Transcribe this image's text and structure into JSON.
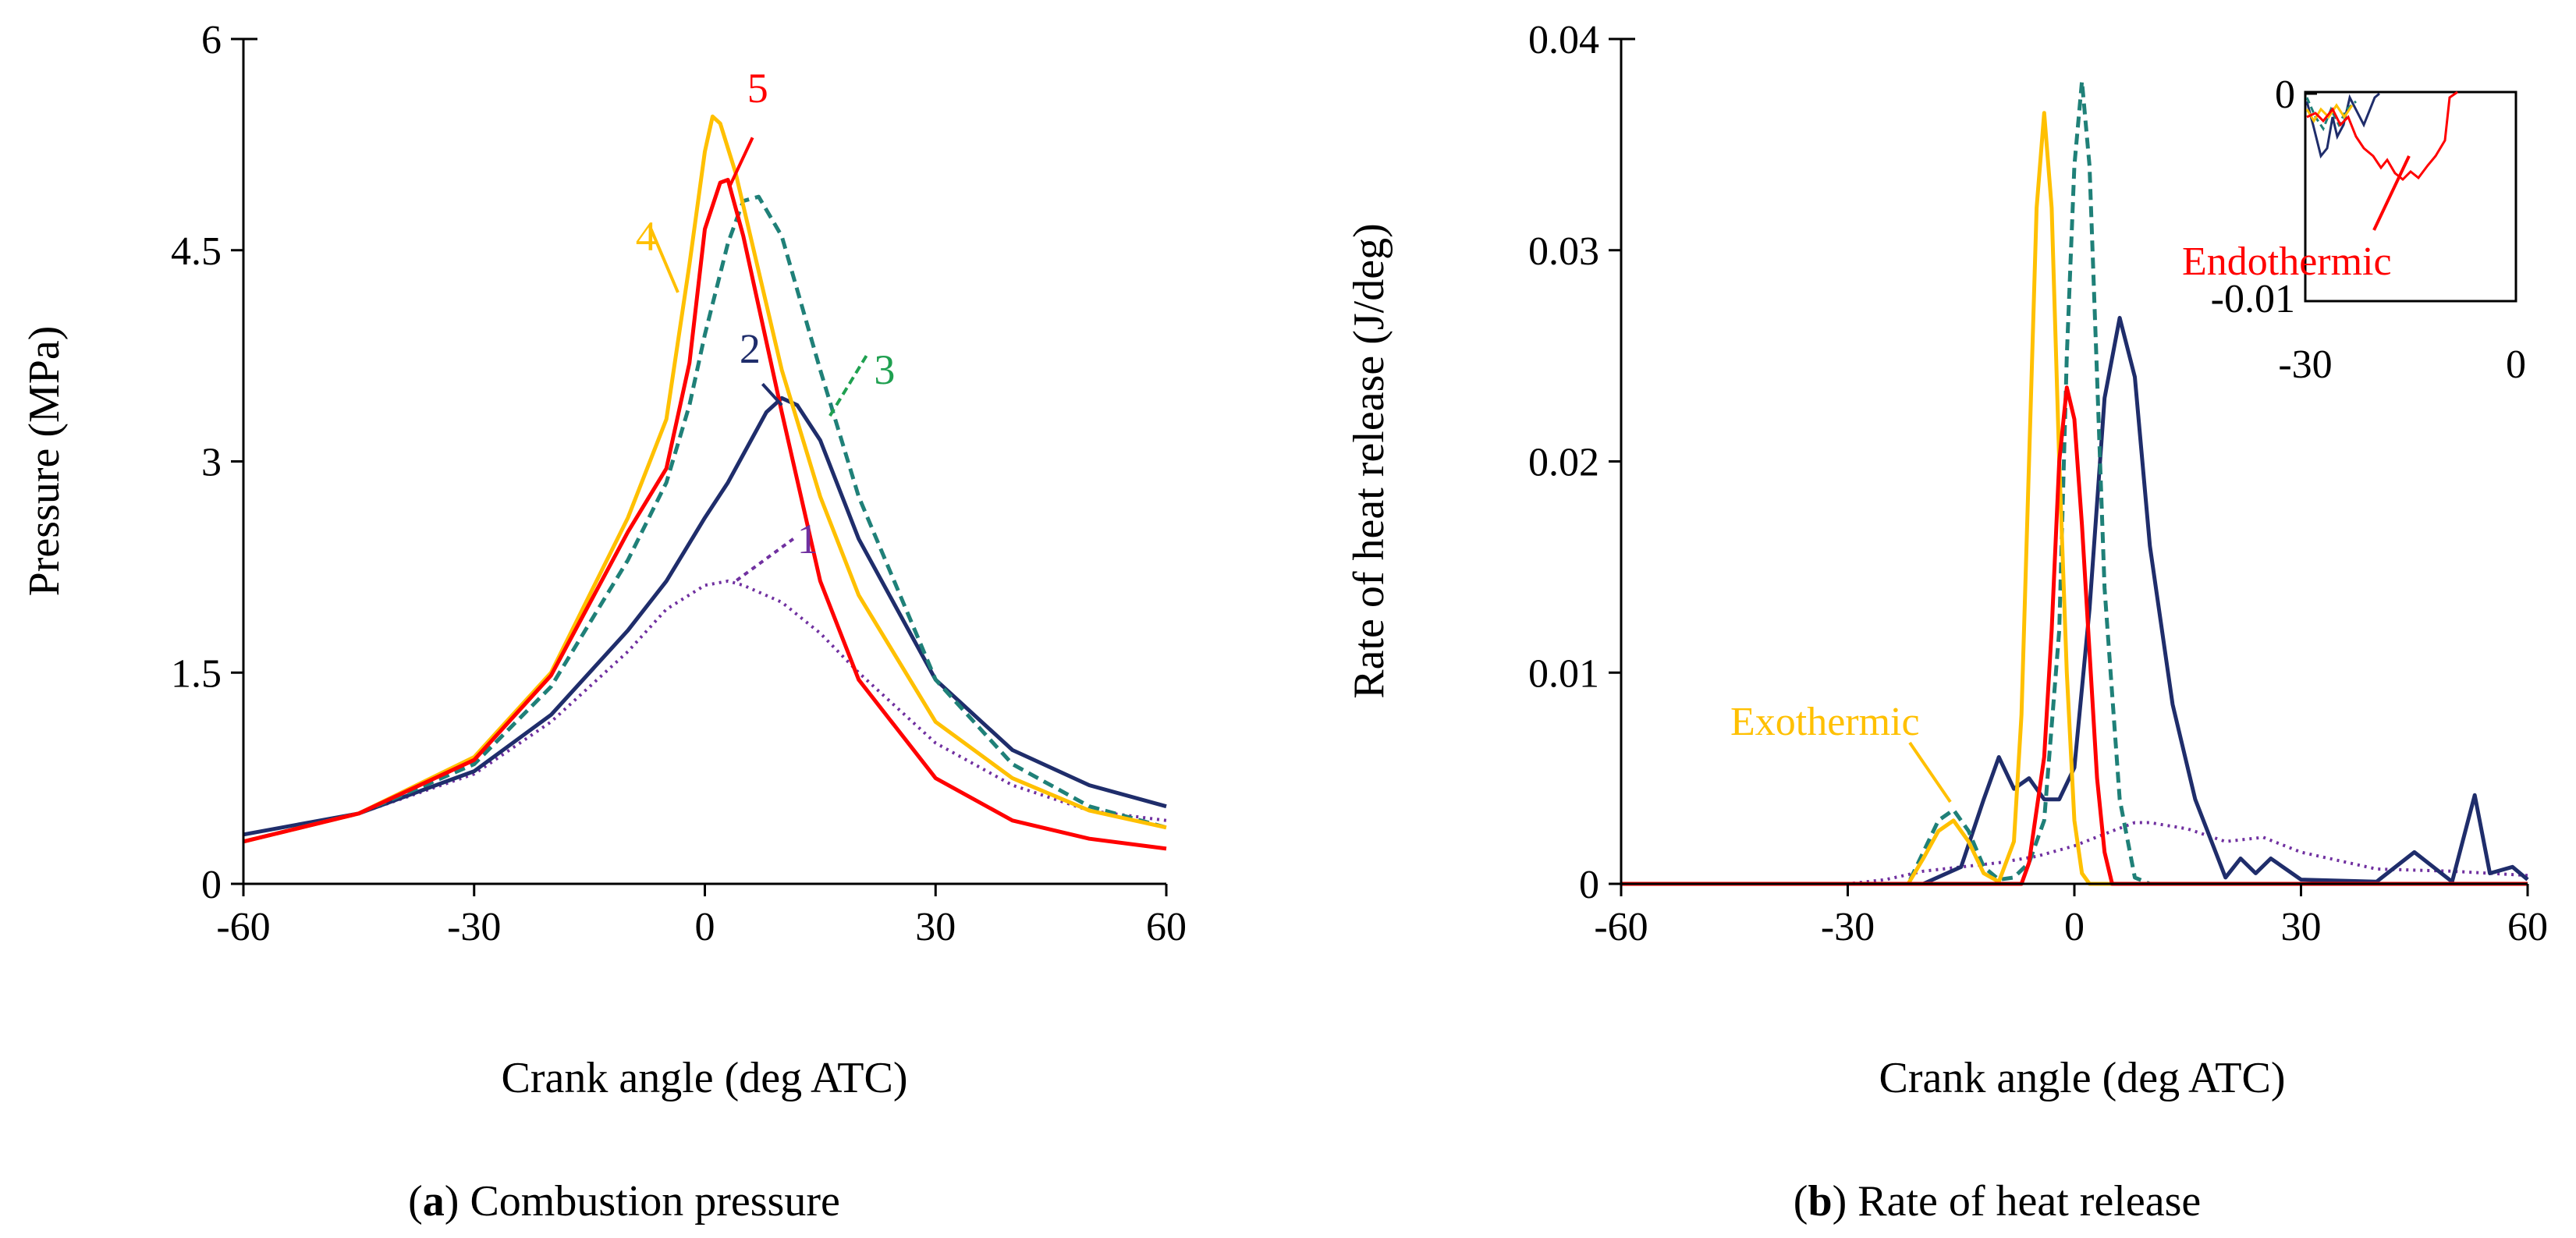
{
  "chart_data": [
    {
      "type": "line",
      "panel": "a",
      "caption_letter": "a",
      "caption_text": " Combustion pressure",
      "xlabel": "Crank angle (deg ATC)",
      "ylabel": "Pressure (MPa)",
      "xlim": [
        -60,
        60
      ],
      "ylim": [
        0,
        6
      ],
      "x_ticks": [
        -60,
        -30,
        0,
        30,
        60
      ],
      "y_ticks": [
        0,
        1.5,
        3,
        4.5,
        6
      ],
      "y_tick_labels": [
        "0",
        "1.5",
        "3",
        "4.5",
        "6"
      ],
      "grid": false,
      "series": [
        {
          "name": "1",
          "color": "#7030A0",
          "dash": "dotted",
          "x": [
            -60,
            -45,
            -30,
            -20,
            -10,
            -5,
            0,
            3,
            5,
            10,
            15,
            20,
            30,
            40,
            50,
            60
          ],
          "y": [
            0.3,
            0.5,
            0.78,
            1.15,
            1.65,
            1.95,
            2.12,
            2.15,
            2.12,
            2.0,
            1.78,
            1.5,
            1.0,
            0.7,
            0.52,
            0.45
          ]
        },
        {
          "name": "2",
          "color": "#1F2D6B",
          "dash": "solid",
          "x": [
            -60,
            -45,
            -30,
            -20,
            -10,
            -5,
            -2,
            0,
            3,
            5,
            8,
            10,
            12,
            15,
            20,
            30,
            40,
            50,
            60
          ],
          "y": [
            0.35,
            0.5,
            0.8,
            1.2,
            1.8,
            2.15,
            2.42,
            2.6,
            2.85,
            3.05,
            3.35,
            3.45,
            3.4,
            3.15,
            2.45,
            1.45,
            0.95,
            0.7,
            0.55
          ]
        },
        {
          "name": "3",
          "color": "#1F8078",
          "dash": "dashed",
          "x": [
            -60,
            -45,
            -30,
            -20,
            -10,
            -5,
            -2,
            0,
            3,
            5,
            7,
            10,
            15,
            20,
            30,
            40,
            50,
            60
          ],
          "y": [
            0.3,
            0.5,
            0.85,
            1.4,
            2.3,
            2.85,
            3.4,
            3.9,
            4.55,
            4.85,
            4.88,
            4.6,
            3.65,
            2.75,
            1.45,
            0.85,
            0.55,
            0.4
          ]
        },
        {
          "name": "4",
          "color": "#FFC000",
          "dash": "solid",
          "x": [
            -60,
            -45,
            -30,
            -20,
            -10,
            -5,
            -2,
            0,
            1,
            2,
            4,
            7,
            10,
            15,
            20,
            30,
            40,
            50,
            60
          ],
          "y": [
            0.3,
            0.5,
            0.9,
            1.5,
            2.6,
            3.3,
            4.4,
            5.2,
            5.45,
            5.4,
            5.05,
            4.35,
            3.65,
            2.75,
            2.05,
            1.15,
            0.75,
            0.52,
            0.4
          ]
        },
        {
          "name": "5",
          "color": "#FF0000",
          "dash": "solid",
          "x": [
            -60,
            -45,
            -30,
            -20,
            -10,
            -5,
            -2,
            0,
            2,
            3,
            5,
            10,
            15,
            20,
            30,
            40,
            50,
            60
          ],
          "y": [
            0.3,
            0.5,
            0.88,
            1.48,
            2.5,
            2.95,
            3.7,
            4.65,
            4.98,
            5.0,
            4.6,
            3.35,
            2.15,
            1.45,
            0.75,
            0.45,
            0.32,
            0.25
          ]
        }
      ],
      "curve_labels": [
        {
          "text": "1",
          "color": "#7030A0",
          "at": [
            12,
            2.35
          ]
        },
        {
          "text": "2",
          "color": "#1F2D6B",
          "at": [
            4.5,
            3.7
          ]
        },
        {
          "text": "3",
          "color": "#1FA050",
          "at": [
            22,
            3.55
          ]
        },
        {
          "text": "4",
          "color": "#FFC000",
          "at": [
            -9,
            4.5
          ]
        },
        {
          "text": "5",
          "color": "#FF0000",
          "at": [
            5.5,
            5.55
          ]
        }
      ]
    },
    {
      "type": "line",
      "panel": "b",
      "caption_letter": "b",
      "caption_text": " Rate of heat release",
      "xlabel": "Crank angle (deg ATC)",
      "ylabel": "Rate of heat release (J/deg)",
      "xlim": [
        -60,
        60
      ],
      "ylim": [
        0,
        0.04
      ],
      "x_ticks": [
        -60,
        -30,
        0,
        30,
        60
      ],
      "y_ticks": [
        0,
        0.01,
        0.02,
        0.03,
        0.04
      ],
      "y_tick_labels": [
        "0",
        "0.01",
        "0.02",
        "0.03",
        "0.04"
      ],
      "grid": false,
      "series": [
        {
          "name": "1",
          "color": "#7030A0",
          "dash": "dotted",
          "x": [
            -60,
            -30,
            -25,
            -20,
            -10,
            -5,
            0,
            5,
            8,
            10,
            15,
            20,
            25,
            30,
            40,
            50,
            60
          ],
          "y": [
            0,
            0,
            0.0002,
            0.0006,
            0.001,
            0.0013,
            0.0018,
            0.0025,
            0.0029,
            0.0029,
            0.0026,
            0.002,
            0.0022,
            0.0015,
            0.0007,
            0.0006,
            0.0004
          ]
        },
        {
          "name": "2",
          "color": "#1F2D6B",
          "dash": "solid",
          "x": [
            -60,
            -20,
            -15,
            -12,
            -10,
            -8,
            -6,
            -4,
            -2,
            0,
            2,
            4,
            6,
            8,
            10,
            13,
            16,
            20,
            22,
            24,
            26,
            30,
            40,
            45,
            50,
            53,
            55,
            58,
            60
          ],
          "y": [
            0,
            0,
            0.0008,
            0.004,
            0.006,
            0.0045,
            0.005,
            0.004,
            0.004,
            0.0055,
            0.013,
            0.023,
            0.0268,
            0.024,
            0.016,
            0.0085,
            0.004,
            0.0003,
            0.0012,
            0.0005,
            0.0012,
            0.0002,
            0.0001,
            0.0015,
            0.0001,
            0.0042,
            0.0005,
            0.0008,
            0.0002
          ]
        },
        {
          "name": "3",
          "color": "#1F8078",
          "dash": "dashed",
          "x": [
            -60,
            -22,
            -20,
            -18,
            -16,
            -14,
            -12,
            -10,
            -8,
            -6,
            -4,
            -2,
            -1,
            0,
            1,
            2,
            3,
            4,
            6,
            8,
            10,
            60
          ],
          "y": [
            0,
            0,
            0.0015,
            0.003,
            0.0035,
            0.0025,
            0.0008,
            0.0002,
            0.0003,
            0.001,
            0.003,
            0.012,
            0.025,
            0.034,
            0.038,
            0.034,
            0.024,
            0.014,
            0.004,
            0.0003,
            0,
            0
          ]
        },
        {
          "name": "4",
          "color": "#FFC000",
          "dash": "solid",
          "x": [
            -60,
            -22,
            -20,
            -18,
            -16,
            -14,
            -12,
            -10,
            -8,
            -7,
            -6,
            -5,
            -4,
            -3,
            -2,
            -1,
            0,
            1,
            2,
            60
          ],
          "y": [
            0,
            0,
            0.0012,
            0.0025,
            0.003,
            0.002,
            0.0005,
            0.0001,
            0.002,
            0.008,
            0.02,
            0.032,
            0.0365,
            0.032,
            0.02,
            0.01,
            0.003,
            0.0005,
            0,
            0
          ]
        },
        {
          "name": "5",
          "color": "#FF0000",
          "dash": "solid",
          "x": [
            -60,
            -40,
            -7,
            -6,
            -4,
            -3,
            -2,
            -1,
            0,
            1,
            2,
            3,
            4,
            5,
            60
          ],
          "y": [
            0,
            0,
            0,
            0.001,
            0.006,
            0.012,
            0.02,
            0.0235,
            0.022,
            0.017,
            0.011,
            0.005,
            0.0015,
            0,
            0
          ]
        }
      ],
      "annotations": [
        {
          "text": "Exothermic",
          "color": "#FFC000"
        },
        {
          "text": "Endothermic",
          "color": "#FF0000"
        }
      ],
      "inset": {
        "xlim": [
          -30,
          0
        ],
        "ylim": [
          -0.01,
          0
        ],
        "x_tick_labels": [
          "-30",
          "0"
        ],
        "y_tick_labels": [
          "0",
          "-0.01"
        ]
      }
    }
  ]
}
